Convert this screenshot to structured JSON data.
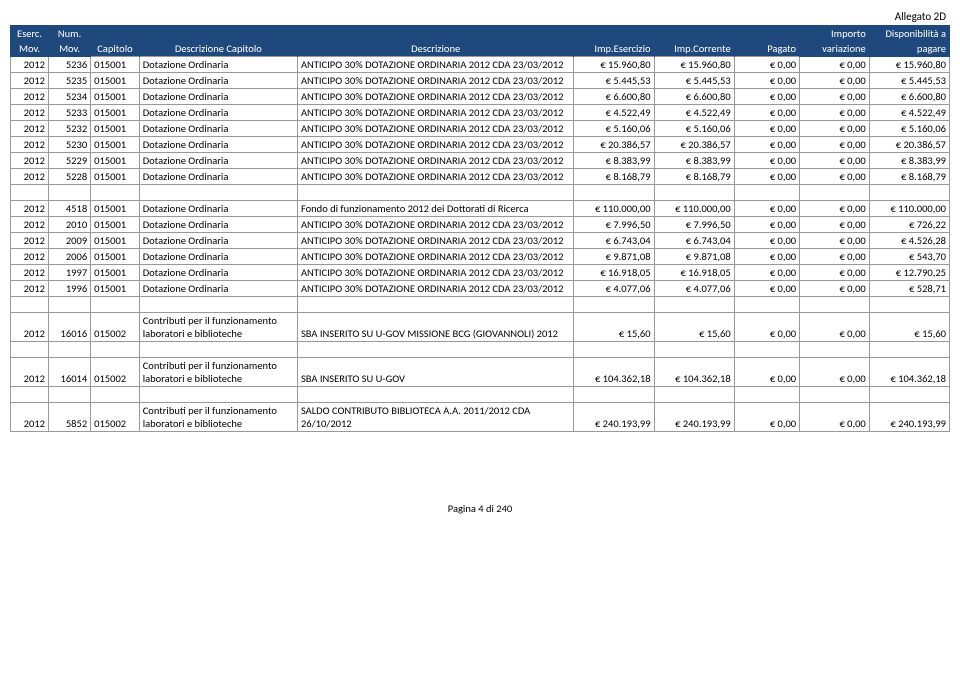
{
  "allegato": "Allegato 2D",
  "header": {
    "eserc_top": "Eserc.",
    "eserc_bot": "Mov.",
    "num_top": "Num.",
    "num_bot": "Mov.",
    "cap": "Capitolo",
    "dcap": "Descrizione Capitolo",
    "desc": "Descrizione",
    "impE": "Imp.Esercizio",
    "impC": "Imp.Corrente",
    "pag": "Pagato",
    "importo_top": "Importo",
    "importo_bot": "variazione",
    "disp_top": "Disponibilità a",
    "disp_bot": "pagare"
  },
  "rows": [
    {
      "e": "2012",
      "n": "5236",
      "cap": "015001",
      "dcap": "Dotazione Ordinaria",
      "desc": "ANTICIPO 30% DOTAZIONE ORDINARIA 2012 CDA 23/03/2012",
      "ie": "€ 15.960,80",
      "ic": "€ 15.960,80",
      "pg": "€ 0,00",
      "iv": "€ 0,00",
      "dp": "€ 15.960,80"
    },
    {
      "e": "2012",
      "n": "5235",
      "cap": "015001",
      "dcap": "Dotazione Ordinaria",
      "desc": "ANTICIPO 30% DOTAZIONE ORDINARIA 2012 CDA 23/03/2012",
      "ie": "€ 5.445,53",
      "ic": "€ 5.445,53",
      "pg": "€ 0,00",
      "iv": "€ 0,00",
      "dp": "€ 5.445,53"
    },
    {
      "e": "2012",
      "n": "5234",
      "cap": "015001",
      "dcap": "Dotazione Ordinaria",
      "desc": "ANTICIPO 30% DOTAZIONE ORDINARIA 2012 CDA 23/03/2012",
      "ie": "€ 6.600,80",
      "ic": "€ 6.600,80",
      "pg": "€ 0,00",
      "iv": "€ 0,00",
      "dp": "€ 6.600,80"
    },
    {
      "e": "2012",
      "n": "5233",
      "cap": "015001",
      "dcap": "Dotazione Ordinaria",
      "desc": "ANTICIPO 30% DOTAZIONE ORDINARIA 2012 CDA 23/03/2012",
      "ie": "€ 4.522,49",
      "ic": "€ 4.522,49",
      "pg": "€ 0,00",
      "iv": "€ 0,00",
      "dp": "€ 4.522,49"
    },
    {
      "e": "2012",
      "n": "5232",
      "cap": "015001",
      "dcap": "Dotazione Ordinaria",
      "desc": "ANTICIPO 30% DOTAZIONE ORDINARIA 2012 CDA 23/03/2012",
      "ie": "€ 5.160,06",
      "ic": "€ 5.160,06",
      "pg": "€ 0,00",
      "iv": "€ 0,00",
      "dp": "€ 5.160,06"
    },
    {
      "e": "2012",
      "n": "5230",
      "cap": "015001",
      "dcap": "Dotazione Ordinaria",
      "desc": "ANTICIPO 30% DOTAZIONE ORDINARIA 2012 CDA 23/03/2012",
      "ie": "€ 20.386,57",
      "ic": "€ 20.386,57",
      "pg": "€ 0,00",
      "iv": "€ 0,00",
      "dp": "€ 20.386,57"
    },
    {
      "e": "2012",
      "n": "5229",
      "cap": "015001",
      "dcap": "Dotazione Ordinaria",
      "desc": "ANTICIPO 30% DOTAZIONE ORDINARIA 2012 CDA 23/03/2012",
      "ie": "€ 8.383,99",
      "ic": "€ 8.383,99",
      "pg": "€ 0,00",
      "iv": "€ 0,00",
      "dp": "€ 8.383,99"
    },
    {
      "e": "2012",
      "n": "5228",
      "cap": "015001",
      "dcap": "Dotazione Ordinaria",
      "desc": "ANTICIPO 30% DOTAZIONE ORDINARIA 2012 CDA 23/03/2012",
      "ie": "€ 8.168,79",
      "ic": "€ 8.168,79",
      "pg": "€ 0,00",
      "iv": "€ 0,00",
      "dp": "€ 8.168,79"
    },
    {
      "e": "2012",
      "n": "4518",
      "cap": "015001",
      "dcap": "Dotazione Ordinaria",
      "desc": "Fondo di funzionamento 2012 dei Dottorati di Ricerca",
      "ie": "€ 110.000,00",
      "ic": "€ 110.000,00",
      "pg": "€ 0,00",
      "iv": "€ 0,00",
      "dp": "€ 110.000,00",
      "gap": true
    },
    {
      "e": "2012",
      "n": "2010",
      "cap": "015001",
      "dcap": "Dotazione Ordinaria",
      "desc": "ANTICIPO 30% DOTAZIONE ORDINARIA 2012 CDA 23/03/2012",
      "ie": "€ 7.996,50",
      "ic": "€ 7.996,50",
      "pg": "€ 0,00",
      "iv": "€ 0,00",
      "dp": "€ 726,22"
    },
    {
      "e": "2012",
      "n": "2009",
      "cap": "015001",
      "dcap": "Dotazione Ordinaria",
      "desc": "ANTICIPO 30% DOTAZIONE ORDINARIA 2012 CDA 23/03/2012",
      "ie": "€ 6.743,04",
      "ic": "€ 6.743,04",
      "pg": "€ 0,00",
      "iv": "€ 0,00",
      "dp": "€ 4.526,28"
    },
    {
      "e": "2012",
      "n": "2006",
      "cap": "015001",
      "dcap": "Dotazione Ordinaria",
      "desc": "ANTICIPO 30% DOTAZIONE ORDINARIA 2012 CDA 23/03/2012",
      "ie": "€ 9.871,08",
      "ic": "€ 9.871,08",
      "pg": "€ 0,00",
      "iv": "€ 0,00",
      "dp": "€ 543,70"
    },
    {
      "e": "2012",
      "n": "1997",
      "cap": "015001",
      "dcap": "Dotazione Ordinaria",
      "desc": "ANTICIPO 30% DOTAZIONE ORDINARIA 2012 CDA 23/03/2012",
      "ie": "€ 16.918,05",
      "ic": "€ 16.918,05",
      "pg": "€ 0,00",
      "iv": "€ 0,00",
      "dp": "€ 12.790,25"
    },
    {
      "e": "2012",
      "n": "1996",
      "cap": "015001",
      "dcap": "Dotazione Ordinaria",
      "desc": "ANTICIPO 30% DOTAZIONE ORDINARIA 2012 CDA 23/03/2012",
      "ie": "€ 4.077,06",
      "ic": "€ 4.077,06",
      "pg": "€ 0,00",
      "iv": "€ 0,00",
      "dp": "€ 528,71"
    },
    {
      "e": "2012",
      "n": "16016",
      "cap": "015002",
      "dcap": "Contributi per il funzionamento laboratori e biblioteche",
      "desc": "SBA INSERITO SU U-GOV MISSIONE BCG (GIOVANNOLI) 2012",
      "ie": "€ 15,60",
      "ic": "€ 15,60",
      "pg": "€ 0,00",
      "iv": "€ 0,00",
      "dp": "€ 15,60",
      "gap": true,
      "tall": true
    },
    {
      "e": "2012",
      "n": "16014",
      "cap": "015002",
      "dcap": "Contributi per il funzionamento laboratori e biblioteche",
      "desc": "SBA INSERITO SU U-GOV",
      "ie": "€ 104.362,18",
      "ic": "€ 104.362,18",
      "pg": "€ 0,00",
      "iv": "€ 0,00",
      "dp": "€ 104.362,18",
      "gap": true,
      "tall": true
    },
    {
      "e": "2012",
      "n": "5852",
      "cap": "015002",
      "dcap": "Contributi per il funzionamento laboratori e biblioteche",
      "desc": "SALDO CONTRIBUTO BIBLIOTECA A.A. 2011/2012 CDA 26/10/2012",
      "ie": "€ 240.193,99",
      "ic": "€ 240.193,99",
      "pg": "€ 0,00",
      "iv": "€ 0,00",
      "dp": "€ 240.193,99",
      "gap": true,
      "tall": true
    }
  ],
  "pageNum": "Pagina 4 di 240"
}
